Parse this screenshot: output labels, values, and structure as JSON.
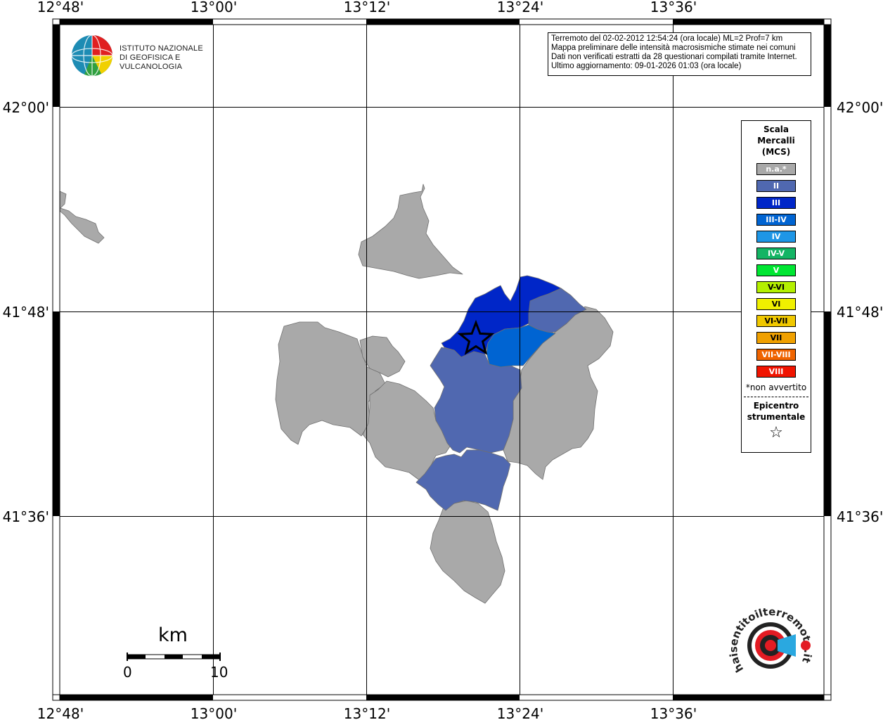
{
  "map": {
    "lon_ticks": [
      "12°48'",
      "13°00'",
      "13°12'",
      "13°24'",
      "13°36'"
    ],
    "lat_ticks": [
      "42°00'",
      "41°48'",
      "41°36'"
    ],
    "frame_colors": {
      "border": "#000000",
      "grid": "#000000",
      "background": "#ffffff"
    }
  },
  "info": {
    "line1": "Terremoto del 02-02-2012 12:54:24 (ora locale) ML=2 Prof=7 km",
    "line2": "Mappa preliminare delle intensità macrosismiche stimate nei comuni",
    "line3": "Dati non verificati estratti da 28 questionari compilati tramite Internet.",
    "line4": "Ultimo aggiornamento: 09-01-2026 01:03 (ora locale)"
  },
  "logo": {
    "line1": "ISTITUTO NAZIONALE",
    "line2": "DI GEOFISICA E VULCANOLOGIA"
  },
  "legend": {
    "title_line1": "Scala",
    "title_line2": "Mercalli",
    "title_line3": "(MCS)",
    "classes": [
      {
        "label": "n.a.*",
        "color": "#a9a9a9"
      },
      {
        "label": "II",
        "color": "#5068b0"
      },
      {
        "label": "III",
        "color": "#0026c8"
      },
      {
        "label": "III-IV",
        "color": "#0064d2"
      },
      {
        "label": "IV",
        "color": "#1e96e6"
      },
      {
        "label": "IV-V",
        "color": "#14b464"
      },
      {
        "label": "V",
        "color": "#00e632"
      },
      {
        "label": "V-VI",
        "color": "#b4f000"
      },
      {
        "label": "VI",
        "color": "#f0f000"
      },
      {
        "label": "VI-VII",
        "color": "#f0c800"
      },
      {
        "label": "VII",
        "color": "#f0a000"
      },
      {
        "label": "VII-VIII",
        "color": "#f06400"
      },
      {
        "label": "VIII",
        "color": "#f01400"
      }
    ],
    "note": "*non avvertito",
    "epicenter_line1": "Epicentro",
    "epicenter_line2": "strumentale",
    "epicenter_symbol": "☆"
  },
  "scalebar": {
    "unit": "km",
    "min_label": "0",
    "max_label": "10"
  },
  "municipalities": [
    {
      "id": "north-area",
      "intensity": "n.a.*",
      "color": "#a9a9a9"
    },
    {
      "id": "northwest-area",
      "intensity": "n.a.*",
      "color": "#a9a9a9"
    },
    {
      "id": "west-area",
      "intensity": "n.a.*",
      "color": "#a9a9a9"
    },
    {
      "id": "west-middle-area",
      "intensity": "n.a.*",
      "color": "#a9a9a9"
    },
    {
      "id": "central-west-area",
      "intensity": "n.a.*",
      "color": "#a9a9a9"
    },
    {
      "id": "east-area",
      "intensity": "n.a.*",
      "color": "#a9a9a9"
    },
    {
      "id": "south-area",
      "intensity": "n.a.*",
      "color": "#a9a9a9"
    },
    {
      "id": "epicentral-area",
      "intensity": "III",
      "color": "#0026c8"
    },
    {
      "id": "northeast-small-area",
      "intensity": "II",
      "color": "#5068b0"
    },
    {
      "id": "central-area",
      "intensity": "II",
      "color": "#5068b0"
    },
    {
      "id": "south-central-area",
      "intensity": "II",
      "color": "#5068b0"
    },
    {
      "id": "east-central-area",
      "intensity": "III-IV",
      "color": "#0064d2"
    }
  ],
  "hst_logo": {
    "text": "haisentitoilterremoto.it",
    "colors": {
      "red": "#e31b23",
      "blue": "#2aa8e0",
      "dark": "#222222"
    }
  }
}
